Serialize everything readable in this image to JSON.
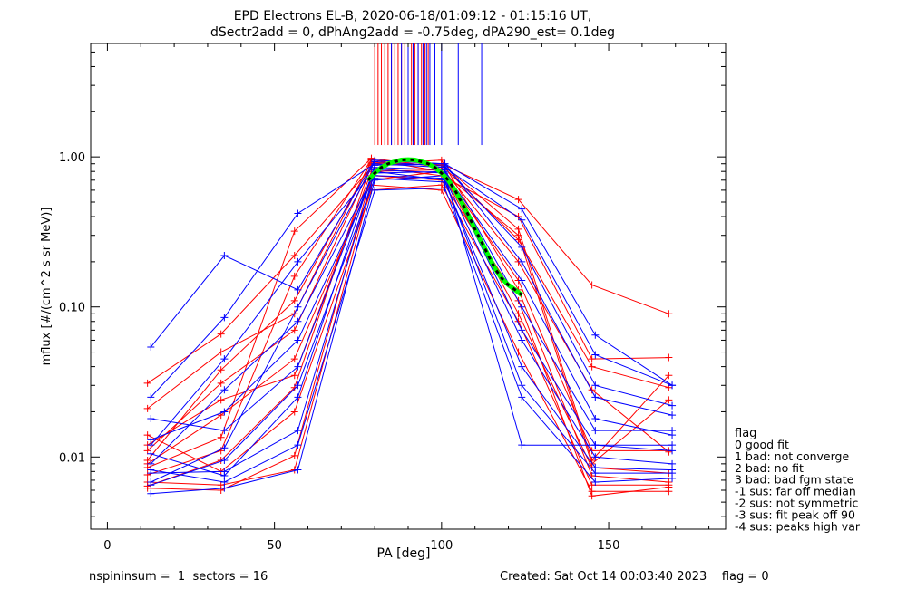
{
  "chart_data": {
    "type": "line",
    "title_line1": "EPD Electrons EL-B, 2020-06-18/01:09:12 - 01:15:16 UT,",
    "title_line2": "dSectr2add = 0, dPhAng2add = -0.75deg, dPA290_est=   0.1deg",
    "xlabel": "PA [deg]",
    "ylabel": "mflux [#/(cm^2 s sr MeV)]",
    "xlim": [
      -5,
      185
    ],
    "ylog": true,
    "ylim": [
      0.0033,
      5.7
    ],
    "x_ticks": [
      0,
      50,
      100,
      150
    ],
    "x_tick_labels": [
      "0",
      "50",
      "100",
      "150"
    ],
    "y_ticks": [
      0.01,
      0.1,
      1.0
    ],
    "y_tick_labels": [
      "0.01",
      "0.10",
      "1.00"
    ],
    "footer_left": "nspininsum =  1  sectors = 16",
    "footer_right": "Created: Sat Oct 14 00:03:40 2023    flag = 0",
    "legend_title": "flag",
    "legend_items": [
      " 0 good fit",
      " 1 bad: not converge",
      " 2 bad: no fit",
      " 3 bad: bad fgm state",
      "-1 sus: far off median",
      "-2 sus: not symmetric",
      "-3 sus: fit peak off 90",
      "-4 sus: peaks high var"
    ],
    "series": [
      {
        "name": "red-1",
        "color": "#ff0000",
        "x": [
          12,
          34,
          56,
          79,
          100,
          123,
          145,
          168
        ],
        "y": [
          0.0064,
          0.0095,
          0.029,
          0.9,
          0.95,
          0.13,
          0.0075,
          0.0068
        ]
      },
      {
        "name": "red-2",
        "color": "#ff0000",
        "x": [
          12,
          34,
          56,
          79,
          100,
          123,
          145,
          168
        ],
        "y": [
          0.021,
          0.05,
          0.09,
          0.95,
          0.9,
          0.52,
          0.14,
          0.09
        ]
      },
      {
        "name": "red-3",
        "color": "#ff0000",
        "x": [
          12,
          34,
          56,
          79,
          100,
          123,
          145,
          168
        ],
        "y": [
          0.009,
          0.019,
          0.045,
          0.7,
          0.8,
          0.3,
          0.009,
          0.024
        ]
      },
      {
        "name": "red-4",
        "color": "#ff0000",
        "x": [
          12,
          34,
          56,
          79,
          100,
          123,
          145,
          168
        ],
        "y": [
          0.014,
          0.008,
          0.02,
          0.6,
          0.65,
          0.08,
          0.0065,
          0.0065
        ]
      },
      {
        "name": "red-5",
        "color": "#ff0000",
        "x": [
          12,
          34,
          56,
          79,
          100,
          123,
          145,
          168
        ],
        "y": [
          0.0085,
          0.0135,
          0.32,
          0.98,
          0.85,
          0.2,
          0.028,
          0.0108
        ]
      },
      {
        "name": "red-6",
        "color": "#ff0000",
        "x": [
          12,
          34,
          56,
          79,
          100,
          123,
          145,
          168
        ],
        "y": [
          0.031,
          0.066,
          0.22,
          0.85,
          0.75,
          0.4,
          0.045,
          0.046
        ]
      },
      {
        "name": "red-7",
        "color": "#ff0000",
        "x": [
          12,
          34,
          56,
          79,
          100,
          123,
          145,
          168
        ],
        "y": [
          0.0062,
          0.006,
          0.0102,
          0.75,
          0.7,
          0.11,
          0.0055,
          0.0063
        ]
      },
      {
        "name": "red-8",
        "color": "#ff0000",
        "x": [
          12,
          34,
          56,
          79,
          100,
          123,
          145,
          168
        ],
        "y": [
          0.012,
          0.024,
          0.035,
          0.8,
          0.82,
          0.15,
          0.011,
          0.011
        ]
      },
      {
        "name": "red-9",
        "color": "#ff0000",
        "x": [
          12,
          34,
          56,
          79,
          100,
          123,
          145,
          168
        ],
        "y": [
          0.0095,
          0.038,
          0.11,
          0.92,
          0.88,
          0.28,
          0.04,
          0.029
        ]
      },
      {
        "name": "red-10",
        "color": "#ff0000",
        "x": [
          12,
          34,
          56,
          79,
          100,
          123,
          145,
          168
        ],
        "y": [
          0.0068,
          0.0065,
          0.0082,
          0.65,
          0.6,
          0.05,
          0.0059,
          0.0059
        ]
      },
      {
        "name": "red-11",
        "color": "#ff0000",
        "x": [
          12,
          34,
          56,
          79,
          100,
          123,
          145,
          168
        ],
        "y": [
          0.011,
          0.031,
          0.07,
          0.88,
          0.9,
          0.33,
          0.0095,
          0.035
        ]
      },
      {
        "name": "red-12",
        "color": "#ff0000",
        "x": [
          12,
          34,
          56,
          79,
          100,
          123,
          145,
          168
        ],
        "y": [
          0.0076,
          0.011,
          0.16,
          0.96,
          0.8,
          0.09,
          0.0085,
          0.0078
        ]
      },
      {
        "name": "blue-1",
        "color": "#0000ff",
        "x": [
          13,
          35,
          57,
          80,
          101,
          124,
          146,
          169
        ],
        "y": [
          0.054,
          0.22,
          0.13,
          0.95,
          0.9,
          0.45,
          0.065,
          0.03
        ]
      },
      {
        "name": "blue-2",
        "color": "#0000ff",
        "x": [
          13,
          35,
          57,
          80,
          101,
          124,
          146,
          169
        ],
        "y": [
          0.0057,
          0.0062,
          0.0082,
          0.7,
          0.75,
          0.012,
          0.012,
          0.012
        ]
      },
      {
        "name": "blue-3",
        "color": "#0000ff",
        "x": [
          13,
          35,
          57,
          80,
          101,
          124,
          146,
          169
        ],
        "y": [
          0.025,
          0.085,
          0.42,
          0.9,
          0.85,
          0.38,
          0.048,
          0.03
        ]
      },
      {
        "name": "blue-4",
        "color": "#0000ff",
        "x": [
          13,
          35,
          57,
          80,
          101,
          124,
          146,
          169
        ],
        "y": [
          0.0078,
          0.008,
          0.015,
          0.8,
          0.7,
          0.03,
          0.0078,
          0.0078
        ]
      },
      {
        "name": "blue-5",
        "color": "#0000ff",
        "x": [
          13,
          35,
          57,
          80,
          101,
          124,
          146,
          169
        ],
        "y": [
          0.018,
          0.015,
          0.04,
          0.85,
          0.82,
          0.1,
          0.015,
          0.015
        ]
      },
      {
        "name": "blue-6",
        "color": "#0000ff",
        "x": [
          13,
          35,
          57,
          80,
          101,
          124,
          146,
          169
        ],
        "y": [
          0.013,
          0.02,
          0.06,
          0.75,
          0.72,
          0.06,
          0.01,
          0.009
        ]
      },
      {
        "name": "blue-7",
        "color": "#0000ff",
        "x": [
          13,
          35,
          57,
          80,
          101,
          124,
          146,
          169
        ],
        "y": [
          0.0105,
          0.0075,
          0.025,
          0.88,
          0.9,
          0.2,
          0.025,
          0.019
        ]
      },
      {
        "name": "blue-8",
        "color": "#0000ff",
        "x": [
          13,
          35,
          57,
          80,
          101,
          124,
          146,
          169
        ],
        "y": [
          0.0068,
          0.0115,
          0.1,
          0.93,
          0.87,
          0.25,
          0.03,
          0.022
        ]
      },
      {
        "name": "blue-9",
        "color": "#0000ff",
        "x": [
          13,
          35,
          57,
          80,
          101,
          124,
          146,
          169
        ],
        "y": [
          0.0082,
          0.0068,
          0.012,
          0.6,
          0.62,
          0.025,
          0.0068,
          0.0072
        ]
      },
      {
        "name": "blue-10",
        "color": "#0000ff",
        "x": [
          13,
          35,
          57,
          80,
          101,
          124,
          146,
          169
        ],
        "y": [
          0.012,
          0.045,
          0.2,
          0.82,
          0.78,
          0.15,
          0.018,
          0.014
        ]
      },
      {
        "name": "blue-11",
        "color": "#0000ff",
        "x": [
          13,
          35,
          57,
          80,
          101,
          124,
          146,
          169
        ],
        "y": [
          0.009,
          0.028,
          0.08,
          0.78,
          0.8,
          0.07,
          0.012,
          0.011
        ]
      },
      {
        "name": "blue-12",
        "color": "#0000ff",
        "x": [
          13,
          35,
          57,
          80,
          101,
          124,
          146,
          169
        ],
        "y": [
          0.0065,
          0.0095,
          0.03,
          0.72,
          0.68,
          0.04,
          0.0085,
          0.0082
        ]
      }
    ],
    "fit_curve": {
      "name": "gaussian fit",
      "colors": [
        "#00ff00",
        "#000000"
      ],
      "x": [
        78,
        80,
        82,
        84,
        86,
        88,
        90,
        92,
        94,
        96,
        98,
        100,
        102,
        104,
        106,
        108,
        110,
        112,
        114,
        116,
        118,
        120,
        122,
        124
      ],
      "y": [
        0.7,
        0.78,
        0.85,
        0.9,
        0.93,
        0.955,
        0.96,
        0.955,
        0.93,
        0.9,
        0.85,
        0.78,
        0.7,
        0.6,
        0.5,
        0.41,
        0.33,
        0.27,
        0.22,
        0.18,
        0.155,
        0.14,
        0.13,
        0.12
      ]
    },
    "markers_red": [
      80,
      81,
      82,
      83,
      84,
      85,
      86,
      87,
      88,
      89,
      90,
      91,
      92,
      93,
      94,
      95,
      96
    ],
    "markers_blue": [
      85,
      88,
      90,
      91.5,
      93,
      94.5,
      95.5,
      96.5,
      98,
      100,
      105,
      112
    ]
  }
}
